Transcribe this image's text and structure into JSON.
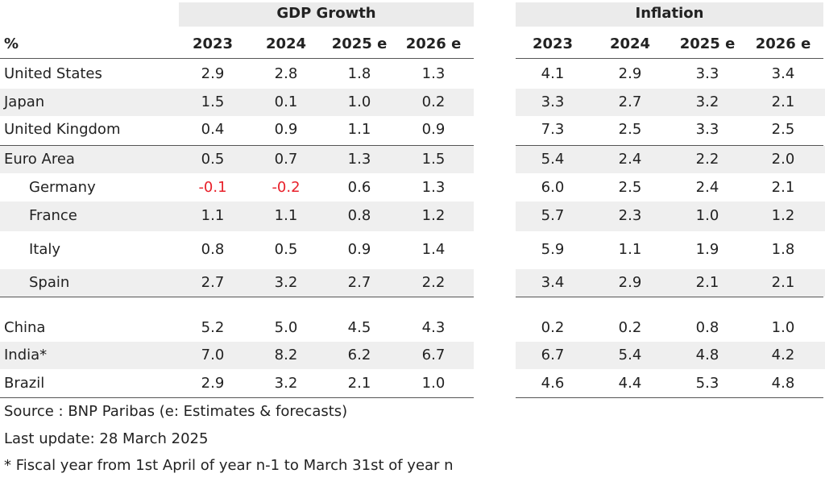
{
  "table": {
    "groups": [
      "GDP Growth",
      "Inflation"
    ],
    "unit": "%",
    "columns": [
      "2023",
      "2024",
      "2025 e",
      "2026 e",
      "2023",
      "2024",
      "2025 e",
      "2026 e"
    ],
    "rows": [
      [
        "United States",
        "2.9",
        "2.8",
        "1.8",
        "1.3",
        "4.1",
        "2.9",
        "3.3",
        "3.4"
      ],
      [
        "Japan",
        "1.5",
        "0.1",
        "1.0",
        "0.2",
        "3.3",
        "2.7",
        "3.2",
        "2.1"
      ],
      [
        "United Kingdom",
        "0.4",
        "0.9",
        "1.1",
        "0.9",
        "7.3",
        "2.5",
        "3.3",
        "2.5"
      ],
      [
        "Euro Area",
        "0.5",
        "0.7",
        "1.3",
        "1.5",
        "5.4",
        "2.4",
        "2.2",
        "2.0"
      ],
      [
        "Germany",
        "-0.1",
        "-0.2",
        "0.6",
        "1.3",
        "6.0",
        "2.5",
        "2.4",
        "2.1"
      ],
      [
        "France",
        "1.1",
        "1.1",
        "0.8",
        "1.2",
        "5.7",
        "2.3",
        "1.0",
        "1.2"
      ],
      [
        "Italy",
        "0.8",
        "0.5",
        "0.9",
        "1.4",
        "5.9",
        "1.1",
        "1.9",
        "1.8"
      ],
      [
        "Spain",
        "2.7",
        "3.2",
        "2.7",
        "2.2",
        "3.4",
        "2.9",
        "2.1",
        "2.1"
      ],
      [
        "China",
        "5.2",
        "5.0",
        "4.5",
        "4.3",
        "0.2",
        "0.2",
        "0.8",
        "1.0"
      ],
      [
        "India*",
        "7.0",
        "8.2",
        "6.2",
        "6.7",
        "6.7",
        "5.4",
        "4.8",
        "4.2"
      ],
      [
        "Brazil",
        "2.9",
        "3.2",
        "2.1",
        "1.0",
        "4.6",
        "4.4",
        "5.3",
        "4.8"
      ]
    ]
  },
  "notes": [
    "Source : BNP Paribas (e: Estimates & forecasts)",
    "Last update: 28 March 2025",
    "* Fiscal year from 1st April of year n-1 to March 31st of year n"
  ]
}
